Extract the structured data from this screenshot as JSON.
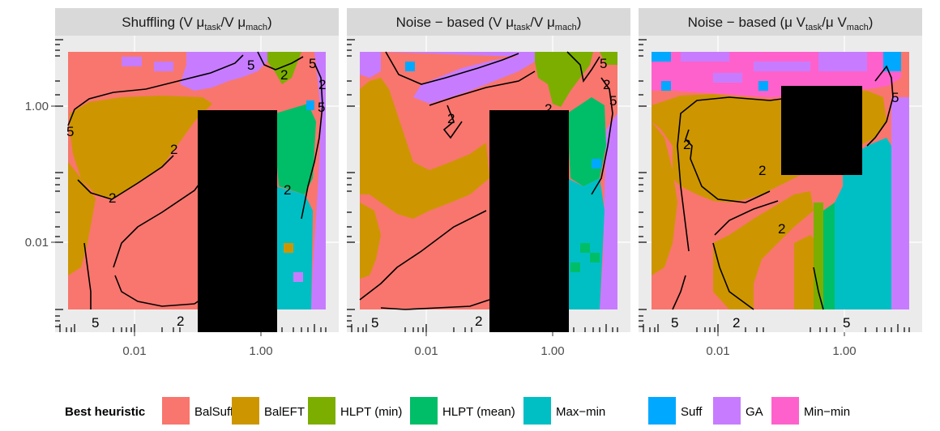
{
  "chart_data": {
    "type": "heatmap",
    "description_free": true,
    "panels": [
      {
        "title": "Shuffling (V μtask/V μmach)",
        "title_parts": {
          "pre": "Shuffling (V μ",
          "sub1": "task",
          "mid": "/V μ",
          "sub2": "mach",
          "post": ")"
        },
        "x_ticks": [
          "0.01",
          "1.00"
        ],
        "contour_labels": [
          "5",
          "2",
          "5",
          "2",
          "5",
          "5",
          "2",
          "2",
          "2",
          "5",
          "2"
        ]
      },
      {
        "title": "Noise − based (V μtask/V μmach)",
        "title_parts": {
          "pre": "Noise − based (V μ",
          "sub1": "task",
          "mid": "/V μ",
          "sub2": "mach",
          "post": ")"
        },
        "x_ticks": [
          "0.01",
          "1.00"
        ],
        "contour_labels": [
          "5",
          "2",
          "2",
          "5",
          "2",
          "5",
          "2"
        ]
      },
      {
        "title": "Noise − based (μ Vtask/μ Vmach)",
        "title_parts": {
          "pre": "Noise − based (μ V",
          "sub1": "task",
          "mid": "/μ V",
          "sub2": "mach",
          "post": ")"
        },
        "x_ticks": [
          "0.01",
          "1.00"
        ],
        "contour_labels": [
          "5",
          "2",
          "2",
          "2",
          "5",
          "5",
          "2"
        ]
      }
    ],
    "y_ticks": [
      "1.00",
      "0.01"
    ],
    "x_scale": "log",
    "y_scale": "log",
    "legend": {
      "title": "Best heuristic",
      "placement": "bottom",
      "entries": [
        {
          "label": "BalSuff",
          "color": "#F8766D"
        },
        {
          "label": "BalEFT",
          "color": "#CD9600"
        },
        {
          "label": "HLPT (min)",
          "color": "#7CAE00"
        },
        {
          "label": "HLPT (mean)",
          "color": "#00BE67"
        },
        {
          "label": "Max−min",
          "color": "#00BFC4"
        },
        {
          "label": "Suff",
          "color": "#00A9FF"
        },
        {
          "label": "GA",
          "color": "#C77CFF"
        },
        {
          "label": "Min−min",
          "color": "#FF61CC"
        }
      ]
    }
  }
}
